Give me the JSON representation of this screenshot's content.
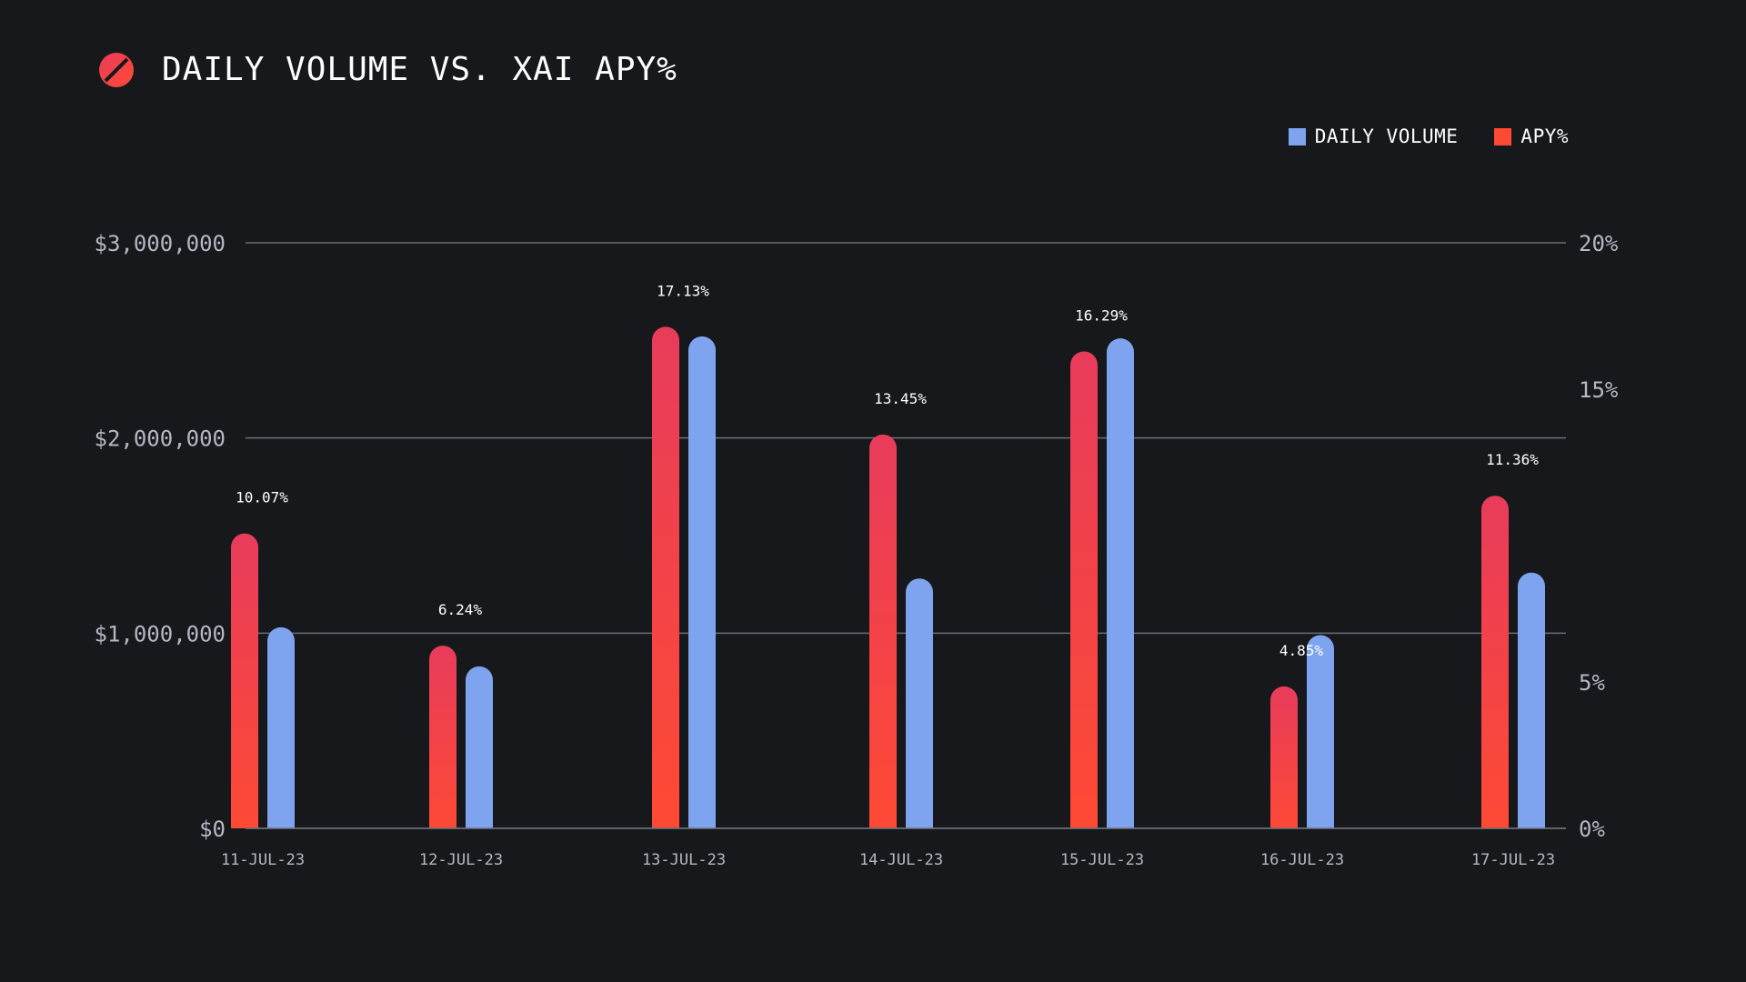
{
  "header": {
    "title": "DAILY VOLUME VS. XAI APY%",
    "logo_icon": "xai-logo-icon"
  },
  "colors": {
    "background": "#17181c",
    "volume": "#7fa4ef",
    "apy_top": "#e83c5b",
    "apy_bottom": "#ff4a33",
    "grid": "#6b6e75",
    "axis_text": "#b4b8c2"
  },
  "legend": {
    "volume_label": "DAILY VOLUME",
    "apy_label": "APY%"
  },
  "chart_data": {
    "type": "bar",
    "title": "DAILY VOLUME VS. XAI APY%",
    "xlabel": "",
    "ylabel": "",
    "categories": [
      "11-JUL-23",
      "12-JUL-23",
      "13-JUL-23",
      "14-JUL-23",
      "15-JUL-23",
      "16-JUL-23",
      "17-JUL-23"
    ],
    "series": [
      {
        "name": "APY%",
        "axis": "right",
        "values": [
          10.07,
          6.24,
          17.13,
          13.45,
          16.29,
          4.85,
          11.36
        ],
        "labels": [
          "10.07%",
          "6.24%",
          "17.13%",
          "13.45%",
          "16.29%",
          "4.85%",
          "11.36%"
        ]
      },
      {
        "name": "DAILY VOLUME",
        "axis": "left",
        "values": [
          1030000,
          830000,
          2520000,
          1280000,
          2510000,
          990000,
          1310000
        ]
      }
    ],
    "left_axis": {
      "ticks": [
        0,
        1000000,
        2000000,
        3000000
      ],
      "tick_labels": [
        "$0",
        "$1,000,000",
        "$2,000,000",
        "$3,000,000"
      ]
    },
    "right_axis": {
      "ticks": [
        0,
        5,
        15,
        20
      ],
      "tick_labels": [
        "0%",
        "5%",
        "15%",
        "20%"
      ]
    },
    "grid": true,
    "legend_position": "top-right"
  }
}
